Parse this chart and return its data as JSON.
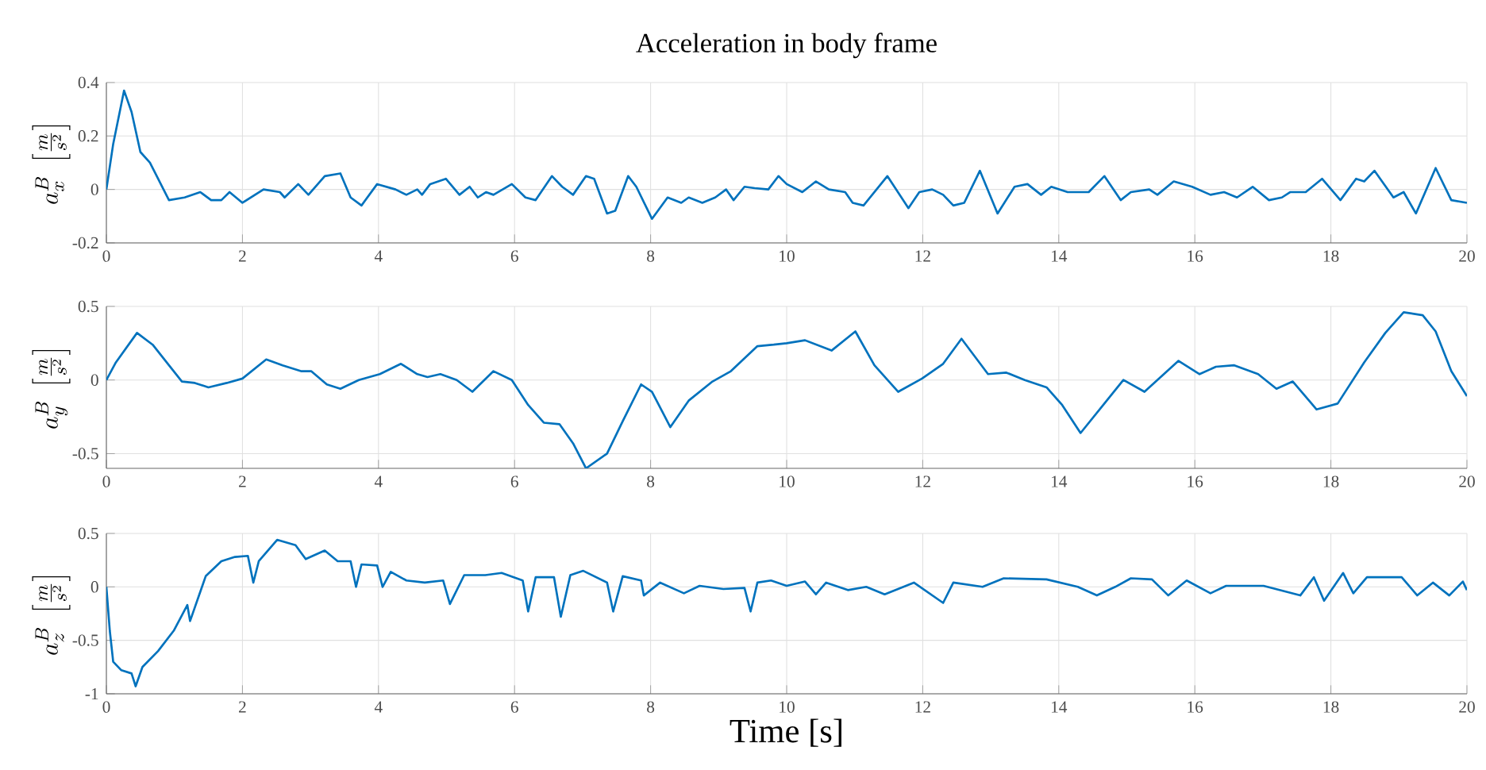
{
  "chart_data": [
    {
      "type": "line",
      "title": "Acceleration in body frame",
      "ylabel": "a^B_x\\;\\left[\\frac{m}{s^2}\\right]",
      "xlim": [
        0,
        20
      ],
      "xticks": [
        0,
        2,
        4,
        6,
        8,
        10,
        12,
        14,
        16,
        18,
        20
      ],
      "ylim": [
        -0.2,
        0.4
      ],
      "yticks": [
        -0.2,
        0,
        0.2,
        0.4
      ],
      "grid": true,
      "x": [
        0,
        0.1,
        0.26,
        0.37,
        0.5,
        0.64,
        0.92,
        1.15,
        1.38,
        1.54,
        1.69,
        1.81,
        2.0,
        2.31,
        2.55,
        2.62,
        2.82,
        2.97,
        3.21,
        3.44,
        3.59,
        3.75,
        3.98,
        4.25,
        4.41,
        4.57,
        4.64,
        4.76,
        4.99,
        5.19,
        5.34,
        5.46,
        5.58,
        5.69,
        5.96,
        6.16,
        6.31,
        6.55,
        6.7,
        6.86,
        7.05,
        7.17,
        7.36,
        7.48,
        7.67,
        7.79,
        8.02,
        8.25,
        8.45,
        8.56,
        8.76,
        8.95,
        9.11,
        9.22,
        9.38,
        9.53,
        9.73,
        9.88,
        10.0,
        10.23,
        10.43,
        10.62,
        10.86,
        10.97,
        11.13,
        11.48,
        11.79,
        11.95,
        12.14,
        12.3,
        12.45,
        12.61,
        12.84,
        13.1,
        13.35,
        13.54,
        13.74,
        13.89,
        14.13,
        14.44,
        14.67,
        14.91,
        15.06,
        15.33,
        15.45,
        15.69,
        15.96,
        16.23,
        16.43,
        16.62,
        16.85,
        17.09,
        17.28,
        17.4,
        17.63,
        17.87,
        18.14,
        18.37,
        18.49,
        18.64,
        18.92,
        19.07,
        19.25,
        19.54,
        19.77,
        20
      ],
      "series": [
        {
          "color": "#0072bd",
          "values": [
            0,
            0.17,
            0.37,
            0.29,
            0.14,
            0.1,
            -0.04,
            -0.03,
            -0.01,
            -0.04,
            -0.04,
            -0.01,
            -0.05,
            0,
            -0.01,
            -0.03,
            0.02,
            -0.02,
            0.05,
            0.06,
            -0.03,
            -0.06,
            0.02,
            0,
            -0.02,
            0,
            -0.02,
            0.02,
            0.04,
            -0.02,
            0.01,
            -0.03,
            -0.01,
            -0.02,
            0.02,
            -0.03,
            -0.04,
            0.05,
            0.01,
            -0.02,
            0.05,
            0.04,
            -0.09,
            -0.08,
            0.05,
            0.01,
            -0.11,
            -0.03,
            -0.05,
            -0.03,
            -0.05,
            -0.03,
            0,
            -0.04,
            0.01,
            0.005,
            0,
            0.05,
            0.02,
            -0.01,
            0.03,
            0,
            -0.01,
            -0.05,
            -0.06,
            0.05,
            -0.07,
            -0.01,
            0,
            -0.02,
            -0.06,
            -0.05,
            0.07,
            -0.09,
            0.01,
            0.02,
            -0.02,
            0.01,
            -0.01,
            -0.01,
            0.05,
            -0.04,
            -0.01,
            0,
            -0.02,
            0.03,
            0.01,
            -0.02,
            -0.01,
            -0.03,
            0.01,
            -0.04,
            -0.03,
            -0.01,
            -0.01,
            0.04,
            -0.04,
            0.04,
            0.03,
            0.07,
            -0.03,
            -0.01,
            -0.09,
            0.08,
            -0.04,
            -0.05
          ]
        }
      ]
    },
    {
      "type": "line",
      "ylabel": "a^B_y\\;\\left[\\frac{m}{s^2}\\right]",
      "xlim": [
        0,
        20
      ],
      "xticks": [
        0,
        2,
        4,
        6,
        8,
        10,
        12,
        14,
        16,
        18,
        20
      ],
      "ylim": [
        -0.6,
        0.5
      ],
      "yticks": [
        -0.5,
        0,
        0.5
      ],
      "grid": true,
      "x": [
        0,
        0.14,
        0.45,
        0.68,
        0.92,
        1.11,
        1.3,
        1.5,
        1.77,
        2.0,
        2.35,
        2.59,
        2.86,
        3.01,
        3.24,
        3.44,
        3.71,
        4.02,
        4.33,
        4.57,
        4.72,
        4.91,
        5.15,
        5.38,
        5.69,
        5.96,
        6.2,
        6.43,
        6.66,
        6.86,
        7.05,
        7.36,
        7.59,
        7.86,
        8.02,
        8.29,
        8.56,
        8.91,
        9.18,
        9.57,
        9.81,
        10.0,
        10.27,
        10.66,
        11.01,
        11.29,
        11.64,
        11.99,
        12.3,
        12.57,
        12.96,
        13.23,
        13.5,
        13.82,
        14.05,
        14.32,
        14.67,
        14.95,
        15.26,
        15.76,
        16.07,
        16.31,
        16.58,
        16.93,
        17.2,
        17.44,
        17.79,
        18.1,
        18.49,
        18.8,
        19.07,
        19.35,
        19.54,
        19.77,
        20
      ],
      "series": [
        {
          "color": "#0072bd",
          "values": [
            0,
            0.12,
            0.32,
            0.24,
            0.1,
            -0.01,
            -0.02,
            -0.05,
            -0.02,
            0.01,
            0.14,
            0.1,
            0.06,
            0.06,
            -0.03,
            -0.06,
            0,
            0.04,
            0.11,
            0.04,
            0.02,
            0.04,
            0,
            -0.08,
            0.06,
            0,
            -0.17,
            -0.29,
            -0.3,
            -0.43,
            -0.6,
            -0.5,
            -0.28,
            -0.03,
            -0.08,
            -0.32,
            -0.14,
            -0.01,
            0.06,
            0.23,
            0.24,
            0.25,
            0.27,
            0.2,
            0.33,
            0.1,
            -0.08,
            0.01,
            0.11,
            0.28,
            0.04,
            0.05,
            0,
            -0.05,
            -0.17,
            -0.36,
            -0.16,
            0,
            -0.08,
            0.13,
            0.04,
            0.09,
            0.1,
            0.04,
            -0.06,
            -0.01,
            -0.2,
            -0.16,
            0.12,
            0.32,
            0.46,
            0.44,
            0.33,
            0.06,
            -0.11
          ]
        }
      ]
    },
    {
      "type": "line",
      "xlabel": "Time [s]",
      "ylabel": "a^B_z\\;\\left[\\frac{m}{s^2}\\right]",
      "xlim": [
        0,
        20
      ],
      "xticks": [
        0,
        2,
        4,
        6,
        8,
        10,
        12,
        14,
        16,
        18,
        20
      ],
      "ylim": [
        -1,
        0.5
      ],
      "yticks": [
        -1,
        -0.5,
        0,
        0.5
      ],
      "grid": true,
      "x": [
        0,
        0.05,
        0.1,
        0.22,
        0.37,
        0.43,
        0.53,
        0.76,
        0.99,
        1.19,
        1.23,
        1.46,
        1.69,
        1.89,
        2.08,
        2.16,
        2.24,
        2.51,
        2.78,
        2.93,
        3.21,
        3.4,
        3.59,
        3.67,
        3.75,
        3.98,
        4.06,
        4.18,
        4.41,
        4.68,
        4.95,
        5.05,
        5.26,
        5.57,
        5.81,
        6.12,
        6.2,
        6.31,
        6.58,
        6.68,
        6.82,
        7.01,
        7.36,
        7.45,
        7.59,
        7.86,
        7.9,
        8.14,
        8.49,
        8.72,
        9.07,
        9.38,
        9.47,
        9.57,
        9.77,
        10.0,
        10.27,
        10.43,
        10.58,
        10.9,
        11.17,
        11.44,
        11.87,
        12.3,
        12.45,
        12.88,
        13.19,
        13.82,
        14.28,
        14.56,
        14.83,
        15.06,
        15.37,
        15.61,
        15.88,
        16.23,
        16.46,
        17.01,
        17.55,
        17.75,
        17.9,
        18.18,
        18.33,
        18.53,
        19.04,
        19.27,
        19.5,
        19.74,
        19.94,
        20
      ],
      "series": [
        {
          "color": "#0072bd",
          "values": [
            0,
            -0.41,
            -0.7,
            -0.78,
            -0.81,
            -0.93,
            -0.75,
            -0.6,
            -0.41,
            -0.17,
            -0.32,
            0.1,
            0.24,
            0.28,
            0.29,
            0.04,
            0.24,
            0.44,
            0.39,
            0.26,
            0.34,
            0.24,
            0.24,
            0,
            0.21,
            0.2,
            0,
            0.14,
            0.06,
            0.04,
            0.06,
            -0.16,
            0.11,
            0.11,
            0.13,
            0.06,
            -0.23,
            0.09,
            0.09,
            -0.28,
            0.11,
            0.15,
            0.04,
            -0.23,
            0.1,
            0.06,
            -0.08,
            0.04,
            -0.06,
            0.01,
            -0.02,
            -0.01,
            -0.23,
            0.04,
            0.06,
            0.01,
            0.05,
            -0.07,
            0.04,
            -0.03,
            0,
            -0.07,
            0.04,
            -0.15,
            0.04,
            0,
            0.08,
            0.07,
            0,
            -0.08,
            0,
            0.08,
            0.07,
            -0.08,
            0.06,
            -0.06,
            0.01,
            0.01,
            -0.08,
            0.09,
            -0.13,
            0.13,
            -0.06,
            0.09,
            0.09,
            -0.08,
            0.04,
            -0.08,
            0.05,
            -0.03
          ]
        }
      ]
    }
  ]
}
